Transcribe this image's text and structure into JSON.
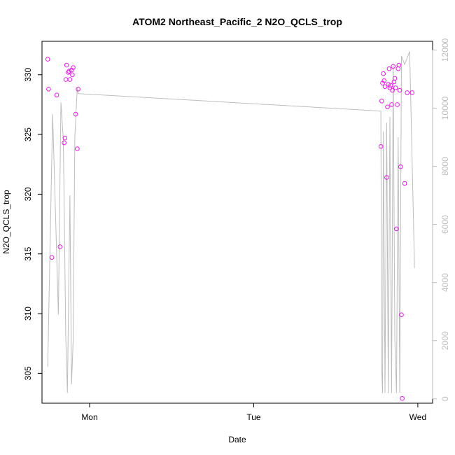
{
  "chart_data": {
    "type": "scatter",
    "title": "ATOM2 Northeast_Pacific_2 N2O_QCLS_trop",
    "xlabel": "Date",
    "ylabel": "N2O_QCLS_trop",
    "x_ticks": [
      "Mon",
      "Tue",
      "Wed"
    ],
    "y_ticks": [
      305,
      310,
      315,
      320,
      325,
      330
    ],
    "y2_ticks": [
      0,
      2000,
      4000,
      6000,
      8000,
      10000,
      12000
    ],
    "xlim_days": [
      -0.29,
      2.09
    ],
    "ylim": [
      302.5,
      332.8
    ],
    "y2lim": [
      -150,
      12300
    ],
    "colors": {
      "points": "#e619e6",
      "altitude_line": "#bdbdbd",
      "axes": "#000000",
      "right_axis": "#bdbdbd"
    },
    "series": [
      {
        "kind": "points",
        "x_days": [
          -0.255,
          -0.25,
          -0.2,
          -0.23,
          -0.18,
          -0.155,
          -0.15,
          -0.145,
          -0.14,
          -0.13,
          -0.125,
          -0.12,
          -0.11,
          -0.105,
          -0.1,
          -0.085,
          -0.075,
          -0.07,
          1.775,
          1.78,
          1.785,
          1.79,
          1.795,
          1.8,
          1.81,
          1.815,
          1.82,
          1.825,
          1.83,
          1.835,
          1.84,
          1.845,
          1.85,
          1.855,
          1.86,
          1.865,
          1.87,
          1.875,
          1.88,
          1.885,
          1.89,
          1.895,
          1.9,
          1.905,
          1.92,
          1.935,
          1.965
        ],
        "y": [
          331.3,
          328.8,
          328.3,
          314.7,
          315.6,
          324.3,
          324.7,
          329.6,
          330.8,
          330.2,
          330.3,
          329.6,
          330.4,
          330.0,
          330.6,
          326.7,
          323.8,
          328.8,
          324.0,
          327.8,
          329.3,
          330.1,
          329.5,
          329.0,
          321.4,
          327.3,
          329.2,
          330.5,
          328.9,
          329.1,
          327.5,
          328.7,
          330.7,
          329.4,
          329.7,
          328.9,
          317.1,
          327.5,
          330.5,
          330.8,
          328.7,
          322.3,
          309.9,
          302.9,
          320.9,
          328.5,
          328.5
        ],
        "y_note": "approximate reading"
      },
      {
        "kind": "line",
        "axis": "right",
        "x_days": [
          -0.255,
          -0.225,
          -0.19,
          -0.175,
          -0.16,
          -0.145,
          -0.135,
          -0.12,
          -0.11,
          -0.1,
          -0.09,
          -0.075,
          -0.07,
          1.775,
          1.78,
          1.785,
          1.79,
          1.8,
          1.81,
          1.82,
          1.83,
          1.84,
          1.85,
          1.86,
          1.87,
          1.88,
          1.89,
          1.9,
          1.92,
          1.95,
          1.98
        ],
        "alt_m": [
          1100,
          9800,
          2900,
          10200,
          8900,
          2100,
          200,
          7000,
          500,
          2000,
          9000,
          10700,
          10500,
          9900,
          1000,
          200,
          9200,
          200,
          9500,
          200,
          9700,
          200,
          11500,
          2000,
          200,
          9000,
          200,
          11800,
          11500,
          11950,
          4500
        ]
      }
    ]
  }
}
